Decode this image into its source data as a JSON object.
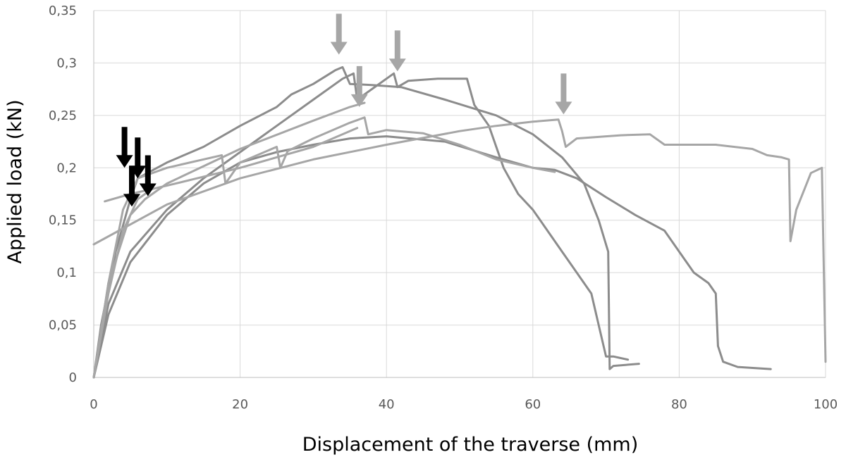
{
  "chart_data": {
    "type": "line",
    "title": "",
    "xlabel": "Displacement of the traverse (mm)",
    "ylabel": "Applied load (kN)",
    "xlim": [
      0,
      100
    ],
    "ylim": [
      0,
      0.35
    ],
    "x_ticks": [
      0,
      20,
      40,
      60,
      80,
      100
    ],
    "x_tick_labels": [
      "0",
      "20",
      "40",
      "60",
      "80",
      "100"
    ],
    "y_ticks": [
      0,
      0.05,
      0.1,
      0.15,
      0.2,
      0.25,
      0.3,
      0.35
    ],
    "y_tick_labels": [
      "0",
      "0,05",
      "0,1",
      "0,15",
      "0,2",
      "0,25",
      "0,3",
      "0,35"
    ],
    "grid": true,
    "legend": "none",
    "colors": {
      "dark_curve": "#8c8c8c",
      "light_curve": "#a6a6a6",
      "black_arrow": "#000000",
      "grey_arrow": "#a6a6a6"
    },
    "series": [
      {
        "color": "#8c8c8c",
        "points": [
          [
            0,
            0
          ],
          [
            1,
            0.05
          ],
          [
            3,
            0.12
          ],
          [
            5,
            0.17
          ],
          [
            6,
            0.19
          ],
          [
            10,
            0.205
          ],
          [
            15,
            0.22
          ],
          [
            20,
            0.24
          ],
          [
            25,
            0.258
          ],
          [
            27,
            0.27
          ],
          [
            30,
            0.28
          ],
          [
            33,
            0.293
          ],
          [
            34,
            0.296
          ],
          [
            35,
            0.28
          ],
          [
            38,
            0.279
          ],
          [
            42,
            0.277
          ],
          [
            48,
            0.265
          ],
          [
            55,
            0.25
          ],
          [
            60,
            0.232
          ],
          [
            64,
            0.21
          ],
          [
            67,
            0.185
          ],
          [
            69,
            0.15
          ],
          [
            70.3,
            0.12
          ],
          [
            70.5,
            0.008
          ],
          [
            71,
            0.011
          ],
          [
            74.5,
            0.013
          ]
        ]
      },
      {
        "color": "#8c8c8c",
        "points": [
          [
            0,
            0
          ],
          [
            2,
            0.07
          ],
          [
            5,
            0.12
          ],
          [
            10,
            0.16
          ],
          [
            15,
            0.19
          ],
          [
            20,
            0.215
          ],
          [
            25,
            0.24
          ],
          [
            30,
            0.265
          ],
          [
            34,
            0.285
          ],
          [
            35.5,
            0.29
          ],
          [
            36,
            0.265
          ],
          [
            38,
            0.275
          ],
          [
            41,
            0.29
          ],
          [
            41.5,
            0.277
          ],
          [
            43,
            0.283
          ],
          [
            47,
            0.285
          ],
          [
            51,
            0.285
          ],
          [
            52,
            0.26
          ],
          [
            54,
            0.24
          ],
          [
            56,
            0.2
          ],
          [
            58,
            0.175
          ],
          [
            60,
            0.16
          ],
          [
            62,
            0.14
          ],
          [
            64,
            0.12
          ],
          [
            66,
            0.1
          ],
          [
            68,
            0.08
          ],
          [
            69,
            0.05
          ],
          [
            70,
            0.02
          ],
          [
            71,
            0.02
          ],
          [
            73,
            0.017
          ]
        ]
      },
      {
        "color": "#8c8c8c",
        "points": [
          [
            0,
            0
          ],
          [
            2,
            0.06
          ],
          [
            5,
            0.11
          ],
          [
            10,
            0.155
          ],
          [
            15,
            0.185
          ],
          [
            20,
            0.205
          ],
          [
            25,
            0.215
          ],
          [
            30,
            0.222
          ],
          [
            35,
            0.228
          ],
          [
            40,
            0.23
          ],
          [
            48,
            0.225
          ],
          [
            55,
            0.21
          ],
          [
            60,
            0.2
          ],
          [
            63,
            0.198
          ],
          [
            66,
            0.19
          ],
          [
            70,
            0.172
          ],
          [
            74,
            0.155
          ],
          [
            78,
            0.14
          ],
          [
            80,
            0.12
          ],
          [
            82,
            0.1
          ],
          [
            84,
            0.09
          ],
          [
            85,
            0.08
          ],
          [
            85.3,
            0.03
          ],
          [
            86,
            0.015
          ],
          [
            88,
            0.01
          ],
          [
            92.5,
            0.008
          ]
        ]
      },
      {
        "color": "#a6a6a6",
        "points": [
          [
            0,
            0.127
          ],
          [
            10,
            0.165
          ],
          [
            20,
            0.19
          ],
          [
            30,
            0.208
          ],
          [
            40,
            0.222
          ],
          [
            50,
            0.235
          ],
          [
            55,
            0.24
          ],
          [
            60,
            0.244
          ],
          [
            63.5,
            0.246
          ],
          [
            64,
            0.235
          ],
          [
            64.5,
            0.22
          ],
          [
            66,
            0.228
          ],
          [
            72,
            0.231
          ],
          [
            76,
            0.232
          ],
          [
            78,
            0.222
          ],
          [
            85,
            0.222
          ],
          [
            90,
            0.218
          ],
          [
            92,
            0.212
          ],
          [
            94,
            0.21
          ],
          [
            95,
            0.208
          ],
          [
            95.2,
            0.13
          ],
          [
            96,
            0.16
          ],
          [
            98,
            0.195
          ],
          [
            99.5,
            0.2
          ],
          [
            100,
            0.015
          ]
        ]
      },
      {
        "color": "#a6a6a6",
        "points": [
          [
            0,
            0
          ],
          [
            2,
            0.09
          ],
          [
            4,
            0.16
          ],
          [
            6,
            0.19
          ],
          [
            10,
            0.2
          ],
          [
            17.5,
            0.212
          ],
          [
            18,
            0.185
          ],
          [
            20,
            0.205
          ],
          [
            25,
            0.22
          ],
          [
            25.5,
            0.2
          ],
          [
            26.5,
            0.216
          ],
          [
            30,
            0.228
          ],
          [
            35,
            0.243
          ],
          [
            37,
            0.248
          ],
          [
            37.5,
            0.232
          ],
          [
            40,
            0.236
          ],
          [
            45,
            0.233
          ],
          [
            50,
            0.222
          ],
          [
            55,
            0.208
          ],
          [
            60,
            0.2
          ],
          [
            63,
            0.196
          ]
        ]
      },
      {
        "color": "#a6a6a6",
        "points": [
          [
            0,
            0
          ],
          [
            2,
            0.09
          ],
          [
            5,
            0.155
          ],
          [
            7,
            0.17
          ],
          [
            10,
            0.185
          ],
          [
            20,
            0.218
          ],
          [
            30,
            0.245
          ],
          [
            35,
            0.258
          ],
          [
            37,
            0.262
          ]
        ]
      },
      {
        "color": "#a6a6a6",
        "points": [
          [
            1.5,
            0.168
          ],
          [
            5,
            0.175
          ],
          [
            10,
            0.183
          ],
          [
            20,
            0.2
          ],
          [
            30,
            0.22
          ],
          [
            36,
            0.238
          ]
        ]
      },
      {
        "color": "#a6a6a6",
        "points": [
          [
            0,
            0
          ],
          [
            2,
            0.08
          ],
          [
            4,
            0.14
          ],
          [
            6,
            0.17
          ],
          [
            8,
            0.18
          ]
        ]
      }
    ],
    "annotations": [
      {
        "type": "arrow",
        "color": "#000000",
        "x": 4.2,
        "y": 0.2
      },
      {
        "type": "arrow",
        "color": "#000000",
        "x": 6.0,
        "y": 0.19
      },
      {
        "type": "arrow",
        "color": "#000000",
        "x": 5.2,
        "y": 0.163
      },
      {
        "type": "arrow",
        "color": "#000000",
        "x": 7.4,
        "y": 0.173
      },
      {
        "type": "arrow",
        "color": "#a6a6a6",
        "x": 33.5,
        "y": 0.308
      },
      {
        "type": "arrow",
        "color": "#a6a6a6",
        "x": 36.3,
        "y": 0.258
      },
      {
        "type": "arrow",
        "color": "#a6a6a6",
        "x": 41.5,
        "y": 0.292
      },
      {
        "type": "arrow",
        "color": "#a6a6a6",
        "x": 64.2,
        "y": 0.251
      }
    ]
  }
}
